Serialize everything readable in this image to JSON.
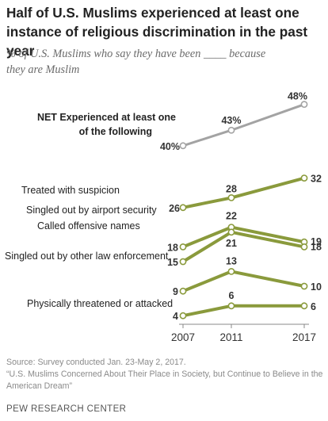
{
  "title": "Half of U.S. Muslims experienced at least one instance of religious discrimination in the past year",
  "subtitle": "% of U.S. Muslims who say they have been ____ because they are Muslim",
  "source": "Source: Survey conducted Jan. 23-May 2, 2017.",
  "report": "“U.S. Muslims Concerned About Their Place in Society, but Continue to Believe in the American Dream”",
  "brand": "PEW RESEARCH CENTER",
  "colors": {
    "net": "#a3a3a3",
    "series": "#8a9a3c"
  },
  "chart_data": {
    "type": "line",
    "x": [
      "2007",
      "2011",
      "2017"
    ],
    "series": [
      {
        "name": "NET Experienced at least one of the following",
        "values": [
          40,
          43,
          48
        ],
        "labels": [
          "40%",
          "43%",
          "48%"
        ],
        "color": "#a3a3a3"
      },
      {
        "name": "Treated with suspicion",
        "values": [
          26,
          28,
          32
        ],
        "labels": [
          "26",
          "28",
          "32"
        ],
        "color": "#8a9a3c"
      },
      {
        "name": "Singled out by airport security",
        "values": [
          18,
          22,
          19
        ],
        "labels": [
          "18",
          "22",
          "19"
        ],
        "color": "#8a9a3c"
      },
      {
        "name": "Called offensive names",
        "values": [
          15,
          21,
          18
        ],
        "labels": [
          "15",
          "21",
          "18"
        ],
        "color": "#8a9a3c"
      },
      {
        "name": "Singled out by other law enforcement",
        "values": [
          9,
          13,
          10
        ],
        "labels": [
          "9",
          "13",
          "10"
        ],
        "color": "#8a9a3c"
      },
      {
        "name": "Physically threatened or attacked",
        "values": [
          4,
          6,
          6
        ],
        "labels": [
          "4",
          "6",
          "6"
        ],
        "color": "#8a9a3c"
      }
    ]
  }
}
